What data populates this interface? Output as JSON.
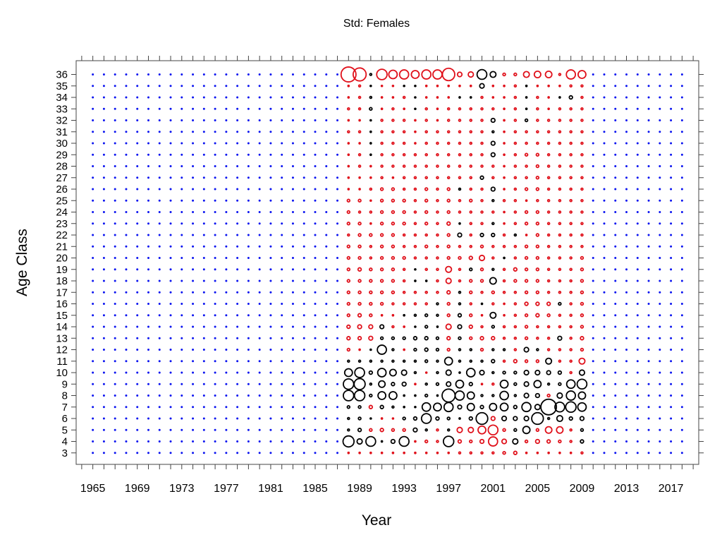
{
  "chart_data": {
    "type": "scatter",
    "subtype": "bubble",
    "title": "Std: Females",
    "xlabel": "Year",
    "ylabel": "Age Class",
    "xlim": [
      1963.5,
      2019.5
    ],
    "ylim": [
      2,
      37.2
    ],
    "x_tick_labels": [
      "1965",
      "1969",
      "1973",
      "1977",
      "1981",
      "1985",
      "1989",
      "1993",
      "1997",
      "2001",
      "2005",
      "2009",
      "2013",
      "2017"
    ],
    "y_tick_labels": [
      "3",
      "4",
      "5",
      "6",
      "7",
      "8",
      "9",
      "10",
      "11",
      "12",
      "13",
      "14",
      "15",
      "16",
      "17",
      "18",
      "19",
      "20",
      "21",
      "22",
      "23",
      "24",
      "25",
      "26",
      "27",
      "28",
      "29",
      "30",
      "31",
      "32",
      "33",
      "34",
      "35",
      "36"
    ],
    "grid": false,
    "legend": "none",
    "placeholder_years": [
      1965,
      1987
    ],
    "placeholder_years_after": [
      2010,
      2018
    ],
    "ages": [
      3,
      36
    ],
    "data_years": [
      1988,
      2009
    ],
    "colors": {
      "positive": "#000000",
      "negative": "#e0101a",
      "placeholder": "#0b14f0"
    },
    "series": [
      {
        "sign": "mixed",
        "encoding": "value_by_age_per_year",
        "values": {
          "1988": {
            "36": -2.3,
            "35": -0.2,
            "34": -0.2,
            "33": -0.3,
            "32": -0.2,
            "31": -0.3,
            "30": -0.2,
            "29": -0.2,
            "28": -0.2,
            "27": -0.2,
            "26": -0.2,
            "25": -0.4,
            "24": -0.4,
            "23": -0.4,
            "22": -0.3,
            "21": -0.4,
            "20": -0.4,
            "19": -0.4,
            "18": -0.4,
            "17": -0.4,
            "16": -0.4,
            "15": -0.4,
            "14": -0.5,
            "13": -0.5,
            "12": -0.4,
            "11": 0.3,
            "10": 1.2,
            "9": 1.6,
            "8": 1.6,
            "7": 0.4,
            "6": 0.3,
            "5": 0.3,
            "4": 1.7,
            "3": -0.2
          },
          "1989": {
            "36": -2.0,
            "35": -0.3,
            "34": -0.3,
            "33": -0.3,
            "32": -0.2,
            "31": -0.3,
            "30": -0.2,
            "29": -0.3,
            "28": -0.3,
            "27": -0.2,
            "26": -0.2,
            "25": -0.4,
            "24": -0.3,
            "23": -0.4,
            "22": -0.4,
            "21": -0.4,
            "20": -0.4,
            "19": -0.5,
            "18": -0.4,
            "17": -0.4,
            "16": -0.4,
            "15": -0.5,
            "14": -0.6,
            "13": -0.5,
            "12": -0.2,
            "11": 0.3,
            "10": 1.5,
            "9": 1.7,
            "8": 1.6,
            "7": 0.4,
            "6": 0.4,
            "5": 0.5,
            "4": 0.8,
            "3": -0.2
          },
          "1990": {
            "36": 0.3,
            "35": 0.1,
            "34": 0.3,
            "33": 0.4,
            "32": 0.1,
            "31": 0.2,
            "30": 0.2,
            "29": 0.2,
            "28": -0.2,
            "27": -0.2,
            "26": -0.3,
            "25": -0.1,
            "24": -0.3,
            "23": -0.2,
            "22": -0.4,
            "21": -0.3,
            "20": -0.3,
            "19": -0.4,
            "18": -0.4,
            "17": -0.4,
            "16": -0.4,
            "15": -0.4,
            "14": -0.6,
            "13": -0.6,
            "12": 0.1,
            "11": 0.3,
            "10": 0.5,
            "9": 0.3,
            "8": 0.4,
            "7": -0.5,
            "6": 0.1,
            "5": -0.4,
            "4": 1.5,
            "3": -0.2
          },
          "1991": {
            "36": -1.6,
            "35": -0.1,
            "34": -0.2,
            "33": -0.2,
            "32": -0.3,
            "31": -0.3,
            "30": -0.3,
            "29": -0.3,
            "28": -0.3,
            "27": -0.3,
            "26": -0.4,
            "25": -0.4,
            "24": -0.4,
            "23": -0.4,
            "22": -0.4,
            "21": -0.4,
            "20": -0.4,
            "19": -0.4,
            "18": -0.4,
            "17": -0.4,
            "16": -0.4,
            "15": -0.2,
            "14": 0.6,
            "13": 0.4,
            "12": 1.4,
            "11": 0.3,
            "10": 1.3,
            "9": 1.0,
            "8": 1.2,
            "7": 0.5,
            "6": -0.2,
            "5": -0.5,
            "4": 0.2,
            "3": -0.2
          },
          "1992": {
            "36": -1.3,
            "35": -0.1,
            "34": -0.2,
            "33": -0.3,
            "32": -0.3,
            "31": -0.3,
            "30": -0.3,
            "29": -0.3,
            "28": -0.3,
            "27": -0.2,
            "26": -0.4,
            "25": -0.4,
            "24": -0.4,
            "23": -0.4,
            "22": -0.4,
            "21": -0.4,
            "20": -0.4,
            "19": -0.4,
            "18": -0.4,
            "17": -0.4,
            "16": -0.3,
            "15": -0.2,
            "14": -0.3,
            "13": 0.4,
            "12": 0.3,
            "11": 0.3,
            "10": 1.0,
            "9": 0.5,
            "8": 1.2,
            "7": 0.3,
            "6": -0.1,
            "5": -0.4,
            "4": 0.6,
            "3": -0.2
          },
          "1993": {
            "36": -1.4,
            "35": 0.1,
            "34": -0.3,
            "33": -0.2,
            "32": -0.3,
            "31": -0.3,
            "30": -0.3,
            "29": -0.3,
            "28": -0.3,
            "27": -0.3,
            "26": -0.3,
            "25": -0.4,
            "24": -0.4,
            "23": -0.4,
            "22": -0.3,
            "21": -0.3,
            "20": -0.4,
            "19": -0.3,
            "18": -0.3,
            "17": -0.3,
            "16": -0.3,
            "15": 0.2,
            "14": -0.2,
            "13": 0.4,
            "12": -0.2,
            "11": 0.3,
            "10": 0.8,
            "9": 0.6,
            "8": 0.2,
            "7": 0.2,
            "6": 0.4,
            "5": -0.4,
            "4": 1.5,
            "3": -0.2
          },
          "1994": {
            "36": -1.2,
            "35": 0.1,
            "34": 0.1,
            "33": 0.1,
            "32": -0.2,
            "31": -0.2,
            "30": -0.2,
            "29": -0.3,
            "28": -0.3,
            "27": -0.3,
            "26": -0.3,
            "25": -0.3,
            "24": -0.3,
            "23": -0.3,
            "22": -0.3,
            "21": -0.3,
            "20": -0.3,
            "19": 0.1,
            "18": 0.2,
            "17": -0.3,
            "16": -0.3,
            "15": 0.3,
            "14": 0.1,
            "13": 0.5,
            "12": 0.4,
            "11": 0.3,
            "10": 0.3,
            "9": -0.2,
            "8": 0.2,
            "7": 0.1,
            "6": 0.5,
            "5": 0.6,
            "4": -0.2,
            "3": -0.2
          },
          "1995": {
            "36": -1.4,
            "35": -0.2,
            "34": -0.2,
            "33": -0.3,
            "32": -0.3,
            "31": -0.3,
            "30": -0.3,
            "29": -0.3,
            "28": -0.3,
            "27": -0.3,
            "26": -0.4,
            "25": -0.4,
            "24": -0.4,
            "23": -0.4,
            "22": -0.3,
            "21": -0.4,
            "20": -0.3,
            "19": -0.3,
            "18": 0.2,
            "17": -0.3,
            "16": -0.3,
            "15": 0.4,
            "14": 0.4,
            "13": 0.5,
            "12": 0.5,
            "11": 0.4,
            "10": -0.1,
            "9": 0.3,
            "8": 0.4,
            "7": 1.3,
            "6": 1.5,
            "5": 0.3,
            "4": -0.4,
            "3": -0.2
          },
          "1996": {
            "36": -1.4,
            "35": -0.2,
            "34": -0.2,
            "33": -0.2,
            "32": -0.2,
            "31": -0.3,
            "30": -0.3,
            "29": -0.3,
            "28": -0.3,
            "27": -0.3,
            "26": -0.3,
            "25": -0.3,
            "24": -0.3,
            "23": -0.3,
            "22": -0.3,
            "21": -0.3,
            "20": -0.3,
            "19": -0.3,
            "18": -0.3,
            "17": -0.3,
            "16": 0.3,
            "15": 0.3,
            "14": 0.2,
            "13": 0.4,
            "12": 0.4,
            "11": 0.3,
            "10": 0.3,
            "9": 0.4,
            "8": 0.2,
            "7": 1.2,
            "6": 0.5,
            "5": -0.3,
            "4": -0.3,
            "3": -0.2
          },
          "1997": {
            "36": -1.9,
            "35": -0.2,
            "34": -0.2,
            "33": -0.3,
            "32": -0.3,
            "31": -0.3,
            "30": -0.3,
            "29": -0.3,
            "28": -0.3,
            "27": -0.3,
            "26": -0.4,
            "25": -0.4,
            "24": -0.4,
            "23": -0.5,
            "22": -0.4,
            "21": -0.4,
            "20": -0.4,
            "19": -0.9,
            "18": -0.8,
            "17": -0.5,
            "16": -0.4,
            "15": -0.4,
            "14": -0.8,
            "13": -0.5,
            "12": -0.4,
            "11": 1.2,
            "10": 0.8,
            "9": 0.7,
            "8": 2.0,
            "7": 1.4,
            "6": 0.4,
            "5": 0.3,
            "4": 1.6,
            "3": -0.2
          },
          "1998": {
            "36": -0.7,
            "35": -0.2,
            "34": 0.2,
            "33": -0.3,
            "32": -0.3,
            "31": -0.3,
            "30": -0.3,
            "29": -0.3,
            "28": -0.3,
            "27": -0.3,
            "26": 0.3,
            "25": -0.3,
            "24": -0.3,
            "23": 0.2,
            "22": 0.6,
            "21": -0.3,
            "20": -0.4,
            "19": -0.3,
            "18": -0.3,
            "17": 0.3,
            "16": 0.3,
            "15": 0.5,
            "14": 0.6,
            "13": 0.4,
            "12": 0.3,
            "11": 0.3,
            "10": 0.2,
            "9": 1.2,
            "8": 1.4,
            "7": 0.6,
            "6": 0.2,
            "5": -0.8,
            "4": -0.5,
            "3": -0.3
          },
          "1999": {
            "36": -0.8,
            "35": -0.2,
            "34": 0.2,
            "33": -0.3,
            "32": -0.3,
            "31": -0.3,
            "30": -0.3,
            "29": -0.3,
            "28": -0.3,
            "27": -0.3,
            "26": -0.3,
            "25": -0.4,
            "24": -0.3,
            "23": -0.3,
            "22": -0.3,
            "21": -0.3,
            "20": -0.5,
            "19": 0.4,
            "18": -0.4,
            "17": -0.4,
            "16": -0.3,
            "15": -0.4,
            "14": -0.5,
            "13": -0.4,
            "12": 0.3,
            "11": 0.3,
            "10": 1.3,
            "9": 0.5,
            "8": 1.1,
            "7": 1.1,
            "6": 0.5,
            "5": -0.8,
            "4": -0.4,
            "3": -0.3
          },
          "2000": {
            "36": 1.5,
            "35": 0.7,
            "34": -0.3,
            "33": -0.3,
            "32": -0.3,
            "31": -0.3,
            "30": -0.3,
            "29": -0.3,
            "28": -0.3,
            "27": 0.5,
            "26": -0.3,
            "25": -0.3,
            "24": -0.3,
            "23": -0.3,
            "22": 0.5,
            "21": -0.4,
            "20": -0.8,
            "19": -0.4,
            "18": -0.4,
            "17": -0.3,
            "16": 0.2,
            "15": -0.2,
            "14": -0.3,
            "13": -0.5,
            "12": -0.4,
            "11": 0.3,
            "10": 0.7,
            "9": -0.2,
            "8": 0.3,
            "7": 0.5,
            "6": 1.8,
            "5": -1.2,
            "4": -0.6,
            "3": -0.3
          },
          "2001": {
            "36": 0.9,
            "35": -0.2,
            "34": -0.2,
            "33": -0.3,
            "32": 0.6,
            "31": 0.3,
            "30": 0.6,
            "29": 0.6,
            "28": -0.3,
            "27": -0.3,
            "26": 0.6,
            "25": 0.3,
            "24": -0.3,
            "23": 0.3,
            "22": 0.5,
            "21": -0.3,
            "20": -0.3,
            "19": 0.3,
            "18": 1.0,
            "17": -0.4,
            "16": -0.3,
            "15": 0.9,
            "14": 0.4,
            "13": -0.5,
            "12": 0.3,
            "11": 0.5,
            "10": 0.3,
            "9": -0.3,
            "8": 0.3,
            "7": 1.1,
            "6": -0.6,
            "5": -1.5,
            "4": -1.4,
            "3": -0.3
          },
          "2002": {
            "36": -0.4,
            "35": -0.2,
            "34": -0.2,
            "33": -0.2,
            "32": -0.2,
            "31": -0.2,
            "30": -0.2,
            "29": -0.2,
            "28": -0.2,
            "27": -0.2,
            "26": -0.2,
            "25": -0.3,
            "24": -0.2,
            "23": -0.2,
            "22": -0.3,
            "21": -0.3,
            "20": 0.2,
            "19": -0.3,
            "18": -0.3,
            "17": -0.3,
            "16": -0.2,
            "15": -0.2,
            "14": -0.3,
            "13": -0.3,
            "12": 0.3,
            "11": -0.3,
            "10": 0.4,
            "9": 1.2,
            "8": 1.3,
            "7": 1.2,
            "6": 0.7,
            "5": -0.4,
            "4": -0.7,
            "3": -0.4
          },
          "2003": {
            "36": -0.4,
            "35": -0.3,
            "34": -0.3,
            "33": -0.3,
            "32": -0.3,
            "31": -0.3,
            "30": -0.3,
            "29": -0.3,
            "28": -0.3,
            "27": -0.3,
            "26": -0.3,
            "25": -0.3,
            "24": -0.3,
            "23": -0.3,
            "22": 0.3,
            "21": -0.3,
            "20": -0.3,
            "19": -0.5,
            "18": -0.4,
            "17": -0.3,
            "16": -0.3,
            "15": -0.3,
            "14": -0.3,
            "13": -0.3,
            "12": -0.3,
            "11": -0.5,
            "10": 0.4,
            "9": 0.4,
            "8": 0.3,
            "7": 0.5,
            "6": 0.6,
            "5": 0.4,
            "4": 0.8,
            "3": -0.5
          },
          "2004": {
            "36": -0.9,
            "35": 0.2,
            "34": 0.2,
            "33": 0.2,
            "32": 0.4,
            "31": -0.3,
            "30": -0.3,
            "29": -0.4,
            "28": -0.3,
            "27": -0.3,
            "26": -0.4,
            "25": -0.2,
            "24": -0.4,
            "23": -0.4,
            "22": -0.2,
            "21": -0.4,
            "20": -0.4,
            "19": -0.4,
            "18": -0.4,
            "17": -0.4,
            "16": -0.5,
            "15": -0.4,
            "14": -0.4,
            "13": -0.4,
            "12": 0.7,
            "11": -0.4,
            "10": 0.7,
            "9": 0.7,
            "8": 0.7,
            "7": 1.4,
            "6": 0.7,
            "5": 1.1,
            "4": -0.4,
            "3": -0.2
          },
          "2005": {
            "36": -1.0,
            "35": -0.2,
            "34": -0.3,
            "33": -0.3,
            "32": -0.3,
            "31": -0.3,
            "30": -0.3,
            "29": -0.4,
            "28": -0.4,
            "27": -0.4,
            "26": -0.4,
            "25": -0.3,
            "24": -0.4,
            "23": -0.4,
            "22": -0.4,
            "21": -0.4,
            "20": -0.4,
            "19": -0.4,
            "18": -0.4,
            "17": -0.4,
            "16": -0.5,
            "15": -0.5,
            "14": -0.3,
            "13": -0.3,
            "12": 0.3,
            "11": -0.4,
            "10": 0.7,
            "9": 1.1,
            "8": 0.6,
            "7": 0.8,
            "6": 1.8,
            "5": -0.4,
            "4": -0.6,
            "3": -0.2
          },
          "2006": {
            "36": -1.0,
            "35": -0.2,
            "34": -0.2,
            "33": -0.2,
            "32": -0.3,
            "31": -0.3,
            "30": -0.3,
            "29": -0.3,
            "28": -0.3,
            "27": -0.3,
            "26": -0.3,
            "25": -0.3,
            "24": -0.3,
            "23": -0.3,
            "22": -0.3,
            "21": -0.3,
            "20": -0.3,
            "19": -0.3,
            "18": -0.3,
            "17": -0.3,
            "16": -0.5,
            "15": -0.4,
            "14": -0.3,
            "13": -0.3,
            "12": -0.3,
            "11": 0.9,
            "10": 0.6,
            "9": 0.3,
            "8": -0.4,
            "7": 2.4,
            "6": 0.3,
            "5": -1.0,
            "4": -0.5,
            "3": -0.2
          },
          "2007": {
            "36": -0.3,
            "35": -0.2,
            "34": 0.2,
            "33": -0.3,
            "32": -0.3,
            "31": -0.3,
            "30": -0.3,
            "29": -0.3,
            "28": -0.3,
            "27": -0.3,
            "26": -0.3,
            "25": -0.3,
            "24": -0.3,
            "23": -0.3,
            "22": -0.3,
            "21": -0.3,
            "20": -0.3,
            "19": -0.3,
            "18": -0.3,
            "17": -0.3,
            "16": 0.4,
            "15": -0.3,
            "14": -0.3,
            "13": 0.6,
            "12": -0.3,
            "11": -0.3,
            "10": 0.5,
            "9": 0.4,
            "8": 0.8,
            "7": 1.5,
            "6": 0.9,
            "5": -1.0,
            "4": -0.4,
            "3": -0.2
          },
          "2008": {
            "36": -1.4,
            "35": -0.3,
            "34": 0.5,
            "33": -0.3,
            "32": -0.3,
            "31": -0.3,
            "30": -0.3,
            "29": -0.3,
            "28": -0.3,
            "27": -0.3,
            "26": -0.3,
            "25": -0.3,
            "24": -0.3,
            "23": -0.3,
            "22": -0.3,
            "21": -0.3,
            "20": -0.3,
            "19": -0.3,
            "18": -0.3,
            "17": -0.3,
            "16": -0.3,
            "15": -0.3,
            "14": -0.3,
            "13": -0.3,
            "12": -0.3,
            "11": -0.3,
            "10": -0.3,
            "9": 1.3,
            "8": 1.4,
            "7": 1.6,
            "6": 0.5,
            "5": -0.3,
            "4": -0.3,
            "3": -0.2
          },
          "2009": {
            "36": -1.2,
            "35": -0.3,
            "34": -0.3,
            "33": -0.3,
            "32": -0.3,
            "31": -0.3,
            "30": -0.3,
            "29": -0.3,
            "28": -0.3,
            "27": -0.3,
            "26": -0.3,
            "25": -0.3,
            "24": -0.3,
            "23": -0.3,
            "22": -0.3,
            "21": -0.3,
            "20": -0.4,
            "19": -0.4,
            "18": -0.4,
            "17": -0.4,
            "16": -0.4,
            "15": -0.4,
            "14": -0.4,
            "13": -0.5,
            "12": -0.4,
            "11": -0.9,
            "10": 0.8,
            "9": 1.5,
            "8": 1.1,
            "7": 1.3,
            "6": 0.6,
            "5": 0.4,
            "4": 0.5,
            "3": -0.3
          }
        }
      }
    ]
  }
}
